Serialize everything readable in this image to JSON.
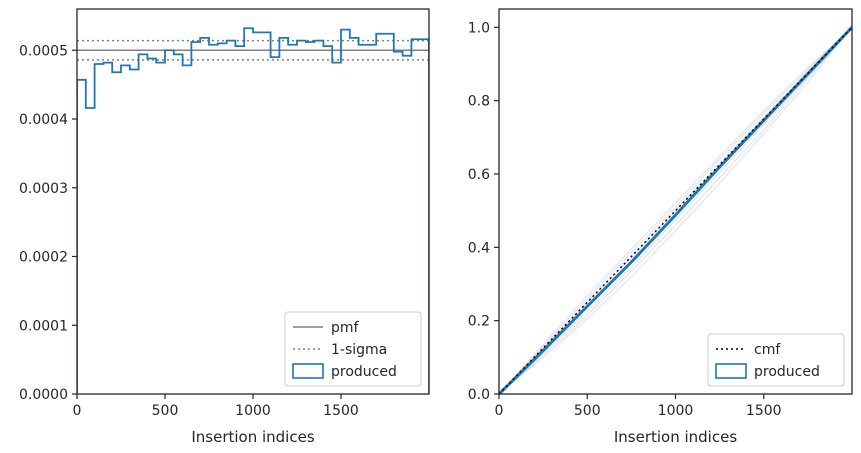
{
  "chart_data": [
    {
      "type": "line",
      "xlabel": "Insertion indices",
      "ylabel": "",
      "xlim": [
        0,
        2000
      ],
      "ylim": [
        0,
        0.00056
      ],
      "xticks": [
        0,
        500,
        1000,
        1500
      ],
      "yticks": [
        0.0,
        0.0001,
        0.0002,
        0.0003,
        0.0004,
        0.0005
      ],
      "ytick_labels": [
        "0.0000",
        "0.0001",
        "0.0002",
        "0.0003",
        "0.0004",
        "0.0005"
      ],
      "legend": {
        "position": "lower-right",
        "entries": [
          "pmf",
          "1-sigma",
          "produced"
        ]
      },
      "series": [
        {
          "name": "pmf",
          "style": "solid",
          "color": "#808080",
          "y": 0.0005
        },
        {
          "name": "1-sigma",
          "style": "dotted",
          "color": "#808080",
          "y_values": [
            0.000514,
            0.000486
          ]
        },
        {
          "name": "produced",
          "style": "step",
          "color": "#1f77b4",
          "bin_edges": [
            0,
            50,
            100,
            150,
            200,
            250,
            300,
            350,
            400,
            450,
            500,
            550,
            600,
            650,
            700,
            750,
            800,
            850,
            900,
            950,
            1000,
            1050,
            1100,
            1150,
            1200,
            1250,
            1300,
            1350,
            1400,
            1450,
            1500,
            1550,
            1600,
            1650,
            1700,
            1750,
            1800,
            1850,
            1900,
            1950,
            2000
          ],
          "values": [
            0.000457,
            0.000416,
            0.00048,
            0.000482,
            0.000468,
            0.000478,
            0.000472,
            0.000494,
            0.000488,
            0.000482,
            0.0005,
            0.000494,
            0.000478,
            0.000512,
            0.000518,
            0.000508,
            0.00051,
            0.000514,
            0.000506,
            0.000532,
            0.000526,
            0.000526,
            0.00049,
            0.000518,
            0.000508,
            0.000514,
            0.000512,
            0.000514,
            0.000506,
            0.000482,
            0.00053,
            0.000518,
            0.000508,
            0.000508,
            0.000524,
            0.000524,
            0.000498,
            0.000492,
            0.000516,
            0.000516
          ]
        }
      ]
    },
    {
      "type": "line",
      "xlabel": "Insertion indices",
      "ylabel": "",
      "xlim": [
        0,
        2000
      ],
      "ylim": [
        0,
        1.05
      ],
      "xticks": [
        0,
        500,
        1000,
        1500
      ],
      "yticks": [
        0.0,
        0.2,
        0.4,
        0.6,
        0.8,
        1.0
      ],
      "ytick_labels": [
        "0.0",
        "0.2",
        "0.4",
        "0.6",
        "0.8",
        "1.0"
      ],
      "legend": {
        "position": "lower-right",
        "entries": [
          "cmf",
          "produced"
        ]
      },
      "series": [
        {
          "name": "cmf",
          "style": "dotted",
          "color": "#000000",
          "x": [
            0,
            2000
          ],
          "y": [
            0,
            1
          ]
        },
        {
          "name": "produced",
          "style": "solid",
          "color": "#1f77b4",
          "x": [
            0,
            250,
            500,
            750,
            1000,
            1250,
            1500,
            1750,
            2000
          ],
          "y": [
            0,
            0.118,
            0.239,
            0.36,
            0.488,
            0.619,
            0.746,
            0.873,
            1.0
          ]
        }
      ],
      "background_runs": [
        [
          0,
          0.105,
          0.215,
          0.335,
          0.46,
          0.59,
          0.72,
          0.86,
          1.0
        ],
        [
          0,
          0.13,
          0.26,
          0.385,
          0.51,
          0.64,
          0.765,
          0.885,
          1.0
        ],
        [
          0,
          0.11,
          0.225,
          0.345,
          0.475,
          0.605,
          0.735,
          0.865,
          1.0
        ],
        [
          0,
          0.125,
          0.25,
          0.372,
          0.5,
          0.63,
          0.755,
          0.88,
          1.0
        ],
        [
          0,
          0.1,
          0.205,
          0.32,
          0.445,
          0.575,
          0.71,
          0.85,
          1.0
        ],
        [
          0,
          0.135,
          0.268,
          0.395,
          0.52,
          0.648,
          0.772,
          0.89,
          1.0
        ]
      ]
    }
  ]
}
